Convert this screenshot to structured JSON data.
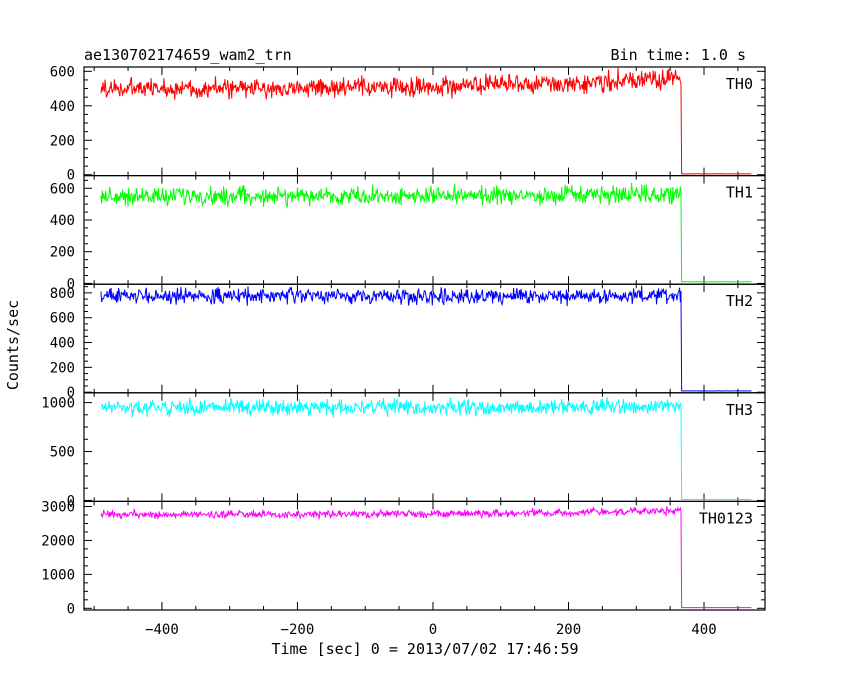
{
  "header": {
    "title": "ae130702174659_wam2_trn",
    "bin_time": "Bin time: 1.0 s"
  },
  "chart_data": {
    "type": "line",
    "xlabel": "Time [sec] 0 = 2013/07/02 17:46:59",
    "ylabel": "Counts/sec",
    "xlim": [
      -515,
      490
    ],
    "x_ticks": [
      -400,
      -200,
      0,
      200,
      400
    ],
    "data_range": [
      -490,
      470
    ],
    "drop_time": 367,
    "grid": false,
    "panels": [
      {
        "name": "TH0",
        "color": "#ff0000",
        "ylim": [
          -5,
          625
        ],
        "y_ticks": [
          0,
          200,
          400,
          600
        ],
        "level_start": 500,
        "level_end": 560,
        "noise": 28,
        "after_drop": 5
      },
      {
        "name": "TH1",
        "color": "#00ff00",
        "ylim": [
          -5,
          680
        ],
        "y_ticks": [
          0,
          200,
          400,
          600
        ],
        "level_start": 550,
        "level_end": 560,
        "noise": 28,
        "after_drop": 10
      },
      {
        "name": "TH2",
        "color": "#0000ff",
        "ylim": [
          -5,
          870
        ],
        "y_ticks": [
          0,
          200,
          400,
          600,
          800
        ],
        "level_start": 775,
        "level_end": 775,
        "noise": 30,
        "after_drop": 10
      },
      {
        "name": "TH3",
        "color": "#00ffff",
        "ylim": [
          -10,
          1100
        ],
        "y_ticks": [
          0,
          500,
          1000
        ],
        "level_start": 950,
        "level_end": 960,
        "noise": 38,
        "after_drop": 10
      },
      {
        "name": "TH0123",
        "color": "#ff00ff",
        "ylim": [
          -50,
          3150
        ],
        "y_ticks": [
          0,
          1000,
          2000,
          3000
        ],
        "level_start": 2760,
        "level_end": 2880,
        "noise": 55,
        "after_drop": 20
      }
    ]
  }
}
